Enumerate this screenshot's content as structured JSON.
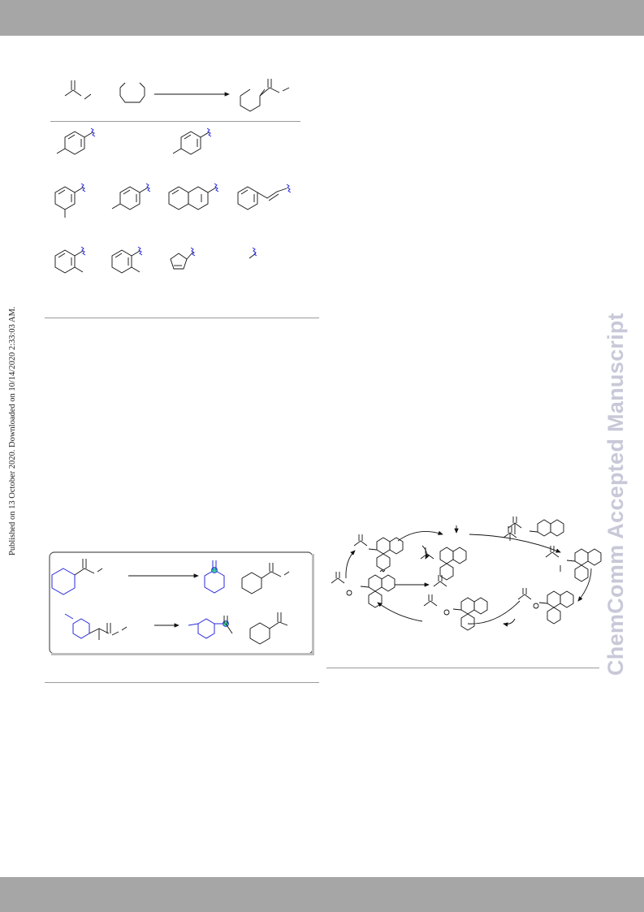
{
  "page": {
    "sidebar_text": "Published on 13 October 2020. Downloaded on 10/14/2020 2:33:03 AM.",
    "watermark": "ChemComm Accepted Manuscript"
  },
  "colors": {
    "header_band": "#a6a6a6",
    "footer_band": "#a6a6a6",
    "watermark": "#c8c8d8",
    "highlight_blue": "#2a2adc",
    "highlight_green": "#3cc8a0"
  },
  "figures": {
    "scheme_substrate_scope": {},
    "scheme_control_experiments": {},
    "scheme_catalytic_cycle": {}
  }
}
